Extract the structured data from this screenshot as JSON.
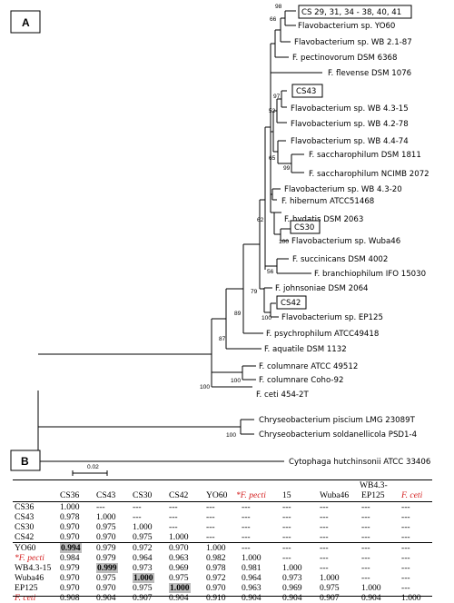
{
  "panels": {
    "a": "A",
    "b": "B"
  },
  "scale_bar_label": "0.02",
  "taxa": {
    "cs_group": "CS 29, 31, 34 - 38, 40, 41",
    "yo60": "Flavobacterium sp. YO60",
    "wb2187": "Flavobacterium sp. WB 2.1-87",
    "pectinovorum": "F. pectinovorum DSM 6368",
    "flevense": "F. flevense DSM 1076",
    "cs43": "CS43",
    "wb4315": "Flavobacterium sp. WB 4.3-15",
    "wb4278": "Flavobacterium sp. WB 4.2-78",
    "wb4474": "Flavobacterium sp. WB 4.4-74",
    "sacch1811": "F. saccharophilum DSM 1811",
    "sacch2072": "F. saccharophilum NCIMB 2072",
    "wb4320": "Flavobacterium sp. WB 4.3-20",
    "hibernum": "F. hibernum ATCC51468",
    "hydatis": "F. hydatis DSM 2063",
    "cs30": "CS30",
    "wuba46": "Flavobacterium sp. Wuba46",
    "succinicans": "F. succinicans DSM 4002",
    "branchiophilum": "F. branchiophilum IFO 15030",
    "johnsoniae": "F. johnsoniae DSM 2064",
    "cs42": "CS42",
    "ep125": "Flavobacterium sp. EP125",
    "psychrophilum": "F. psychrophilum ATCC49418",
    "aquatile": "F. aquatile DSM 1132",
    "columnare49512": "F. columnare ATCC 49512",
    "columnareCoho": "F. columnare Coho-92",
    "ceti": "F. ceti 454-2T",
    "chryseoPiscium": "Chryseobacterium piscium LMG 23089T",
    "chryseoSoldan": "Chryseobacterium soldanellicola PSD1-4",
    "cytophaga": "Cytophaga hutchinsonii ATCC 33406"
  },
  "bootstrap": {
    "b98": "98",
    "b66": "66",
    "b97": "97",
    "b52": "52",
    "b65": "65",
    "b99": "99",
    "b100wuba": "100",
    "b62": "62",
    "b56": "56",
    "b79": "79",
    "b100ep": "100",
    "b89": "89",
    "b87": "87",
    "b100col": "100",
    "b100colb": "100",
    "b100chry": "100"
  },
  "matrix": {
    "header_top": "WB4.3-",
    "columns": [
      "CS36",
      "CS43",
      "CS30",
      "CS42",
      "YO60",
      "*F. pecti",
      "15",
      "Wuba46",
      "EP125",
      "F. ceti"
    ],
    "rows": [
      {
        "name": "CS36",
        "cells": [
          "1.000",
          "---",
          "---",
          "---",
          "---",
          "---",
          "---",
          "---",
          "---",
          "---"
        ]
      },
      {
        "name": "CS43",
        "cells": [
          "0.978",
          "1.000",
          "---",
          "---",
          "---",
          "---",
          "---",
          "---",
          "---",
          "---"
        ]
      },
      {
        "name": "CS30",
        "cells": [
          "0.970",
          "0.975",
          "1.000",
          "---",
          "---",
          "---",
          "---",
          "---",
          "---",
          "---"
        ]
      },
      {
        "name": "CS42",
        "cells": [
          "0.970",
          "0.970",
          "0.975",
          "1.000",
          "---",
          "---",
          "---",
          "---",
          "---",
          "---"
        ]
      },
      {
        "name": "YO60",
        "cells": [
          "0.994",
          "0.979",
          "0.972",
          "0.970",
          "1.000",
          "---",
          "---",
          "---",
          "---",
          "---"
        ]
      },
      {
        "name": "*F. pecti",
        "cells": [
          "0.984",
          "0.979",
          "0.964",
          "0.963",
          "0.982",
          "1.000",
          "---",
          "---",
          "---",
          "---"
        ]
      },
      {
        "name": "WB4.3-15",
        "cells": [
          "0.979",
          "0.999",
          "0.973",
          "0.969",
          "0.978",
          "0.981",
          "1.000",
          "---",
          "---",
          "---"
        ]
      },
      {
        "name": "Wuba46",
        "cells": [
          "0.970",
          "0.975",
          "1.000",
          "0.975",
          "0.972",
          "0.964",
          "0.973",
          "1.000",
          "---",
          "---"
        ]
      },
      {
        "name": "EP125",
        "cells": [
          "0.970",
          "0.970",
          "0.975",
          "1.000",
          "0.970",
          "0.963",
          "0.969",
          "0.975",
          "1.000",
          "---"
        ]
      },
      {
        "name": "F. ceti",
        "cells": [
          "0.908",
          "0.904",
          "0.907",
          "0.904",
          "0.910",
          "0.904",
          "0.904",
          "0.907",
          "0.904",
          "1.000"
        ]
      }
    ]
  }
}
